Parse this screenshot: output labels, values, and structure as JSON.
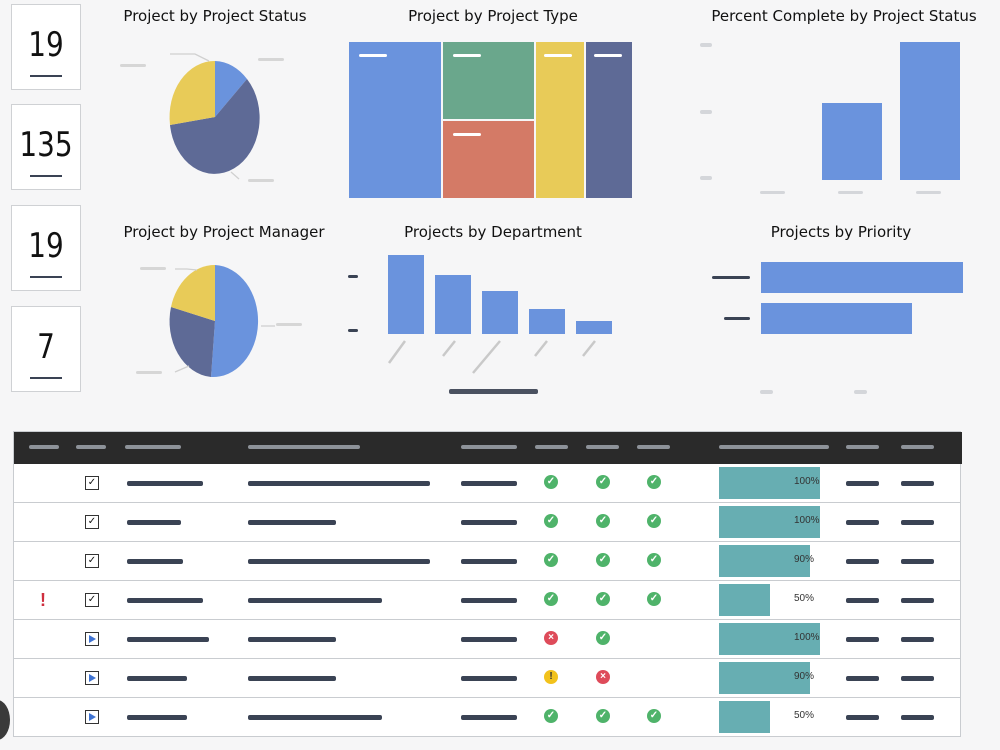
{
  "kpis": [
    {
      "value": "19"
    },
    {
      "value": "135"
    },
    {
      "value": "19"
    },
    {
      "value": "7"
    }
  ],
  "panels": {
    "project_by_status": {
      "title": "Project by Project Status"
    },
    "project_by_type": {
      "title": "Project by Project Type"
    },
    "percent_complete_by_status": {
      "title": "Percent Complete by Project Status"
    },
    "project_by_manager": {
      "title": "Project by Project Manager"
    },
    "projects_by_department": {
      "title": "Projects by Department"
    },
    "projects_by_priority": {
      "title": "Projects by Priority"
    }
  },
  "colors": {
    "blue": "#6a93dd",
    "navy": "#5e6a96",
    "yellow": "#e8cb58",
    "green": "#6aa78c",
    "salmon": "#d47a66",
    "teal": "#67aeb2"
  },
  "table": {
    "rows": [
      {
        "alert": "",
        "type": "checkbox-icon",
        "s1": "ok",
        "s2": "ok",
        "s3": "ok",
        "progress_label": "100%",
        "progress": 1.0
      },
      {
        "alert": "",
        "type": "checkbox-icon",
        "s1": "ok",
        "s2": "ok",
        "s3": "ok",
        "progress_label": "100%",
        "progress": 1.0
      },
      {
        "alert": "",
        "type": "checkbox-icon",
        "s1": "ok",
        "s2": "ok",
        "s3": "ok",
        "progress_label": "90%",
        "progress": 0.9
      },
      {
        "alert": "!",
        "type": "checkbox-icon",
        "s1": "ok",
        "s2": "ok",
        "s3": "ok",
        "progress_label": "50%",
        "progress": 0.5
      },
      {
        "alert": "",
        "type": "play-icon",
        "s1": "bad",
        "s2": "ok",
        "s3": "",
        "progress_label": "100%",
        "progress": 1.0
      },
      {
        "alert": "",
        "type": "play-icon",
        "s1": "warn",
        "s2": "bad",
        "s3": "",
        "progress_label": "90%",
        "progress": 0.9
      },
      {
        "alert": "",
        "type": "play-icon",
        "s1": "ok",
        "s2": "ok",
        "s3": "ok",
        "progress_label": "50%",
        "progress": 0.5
      }
    ]
  }
}
